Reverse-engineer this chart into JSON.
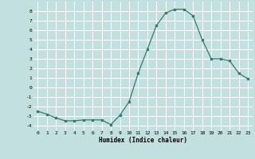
{
  "x": [
    0,
    1,
    2,
    3,
    4,
    5,
    6,
    7,
    8,
    9,
    10,
    11,
    12,
    13,
    14,
    15,
    16,
    17,
    18,
    19,
    20,
    21,
    22,
    23
  ],
  "y": [
    -2.5,
    -2.8,
    -3.2,
    -3.5,
    -3.5,
    -3.4,
    -3.4,
    -3.4,
    -3.9,
    -2.9,
    -1.5,
    1.5,
    4.0,
    6.5,
    7.8,
    8.2,
    8.2,
    7.5,
    5.0,
    3.0,
    3.0,
    2.8,
    1.5,
    0.9
  ],
  "xlabel": "Humidex (Indice chaleur)",
  "ylim": [
    -4.5,
    9.0
  ],
  "xlim": [
    -0.5,
    23.5
  ],
  "xticks": [
    0,
    1,
    2,
    3,
    4,
    5,
    6,
    7,
    8,
    9,
    10,
    11,
    12,
    13,
    14,
    15,
    16,
    17,
    18,
    19,
    20,
    21,
    22,
    23
  ],
  "yticks": [
    -4,
    -3,
    -2,
    -1,
    0,
    1,
    2,
    3,
    4,
    5,
    6,
    7,
    8
  ],
  "line_color": "#2e7d6e",
  "bg_color": "#c2e0e0",
  "grid_color": "#ffffff"
}
